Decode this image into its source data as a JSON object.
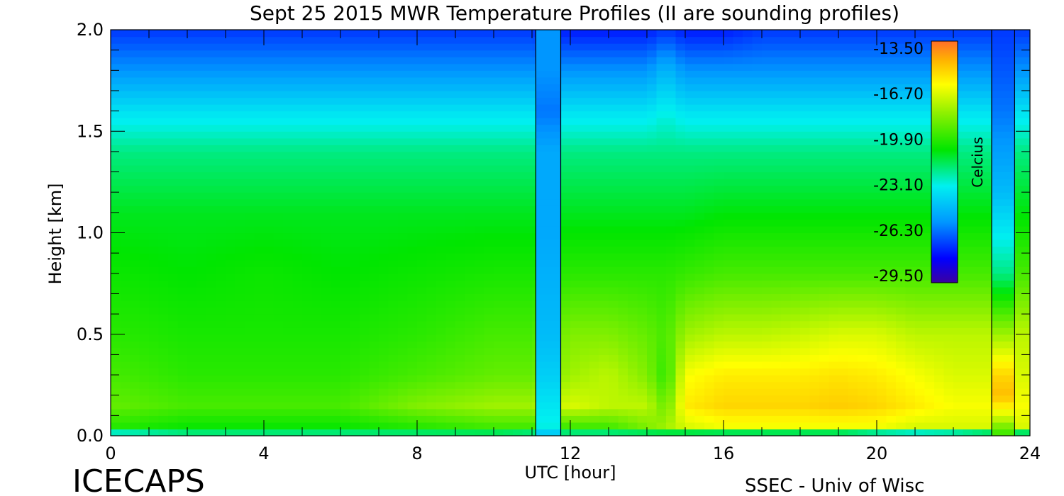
{
  "chart_data": {
    "type": "heatmap",
    "title": "Sept 25 2015 MWR Temperature Profiles (II are sounding profiles)",
    "xlabel": "UTC [hour]",
    "ylabel": "Height [km]",
    "xlim": [
      0,
      24
    ],
    "ylim": [
      0.0,
      2.0
    ],
    "x_ticks": [
      "0",
      "4",
      "8",
      "12",
      "16",
      "20",
      "24"
    ],
    "y_ticks": [
      "0.0",
      "0.5",
      "1.0",
      "1.5",
      "2.0"
    ],
    "colorbar": {
      "label": "Celcius",
      "ticks": [
        "-13.50",
        "-16.70",
        "-19.90",
        "-23.10",
        "-26.30",
        "-29.50"
      ],
      "range": [
        -29.5,
        -13.5
      ]
    },
    "sounding_profiles": [
      {
        "x_start": 11.1,
        "x_end": 11.75
      },
      {
        "x_start": 23.0,
        "x_end": 23.6
      }
    ],
    "temperature_grid": {
      "hours": [
        0,
        2,
        4,
        6,
        8,
        10,
        11,
        12,
        13,
        14,
        14.5,
        15,
        16,
        17,
        18,
        19,
        20,
        21,
        22,
        23
      ],
      "heights_km": [
        0.0,
        0.05,
        0.15,
        0.3,
        0.5,
        0.8,
        1.1,
        1.4,
        1.6,
        1.8,
        2.0
      ],
      "values_c": [
        [
          -24.0,
          -22.5,
          -22.5,
          -22.5,
          -22.5,
          -22.5,
          -23.0,
          -23.0,
          -23.0,
          -23.0,
          -23.0,
          -23.5,
          -24.0,
          -24.0,
          -24.0,
          -24.0,
          -25.0,
          -25.5,
          -25.0,
          -24.0
        ],
        [
          -20.0,
          -20.5,
          -20.5,
          -20.5,
          -20.0,
          -19.5,
          -19.5,
          -19.5,
          -19.5,
          -18.5,
          -18.0,
          -17.0,
          -16.5,
          -16.5,
          -16.5,
          -16.5,
          -16.5,
          -17.0,
          -17.0,
          -17.0
        ],
        [
          -19.0,
          -19.5,
          -19.5,
          -19.5,
          -18.5,
          -18.0,
          -18.0,
          -17.0,
          -17.5,
          -17.5,
          -19.0,
          -16.0,
          -15.5,
          -15.5,
          -15.5,
          -15.3,
          -15.5,
          -16.0,
          -16.5,
          -16.5
        ],
        [
          -19.5,
          -20.0,
          -20.0,
          -20.0,
          -19.5,
          -19.0,
          -19.0,
          -18.0,
          -17.5,
          -18.5,
          -20.0,
          -16.5,
          -16.0,
          -16.0,
          -16.0,
          -15.8,
          -16.0,
          -16.5,
          -17.0,
          -17.0
        ],
        [
          -20.0,
          -20.3,
          -20.3,
          -20.3,
          -20.0,
          -19.5,
          -19.5,
          -18.5,
          -18.5,
          -19.0,
          -19.5,
          -18.0,
          -17.5,
          -17.5,
          -17.3,
          -17.0,
          -17.0,
          -17.5,
          -17.5,
          -17.5
        ],
        [
          -20.5,
          -20.7,
          -20.5,
          -20.7,
          -20.5,
          -20.3,
          -20.3,
          -20.0,
          -20.0,
          -20.0,
          -20.0,
          -19.8,
          -19.5,
          -19.5,
          -19.5,
          -19.5,
          -19.5,
          -19.5,
          -19.5,
          -19.5
        ],
        [
          -21.0,
          -21.0,
          -21.0,
          -21.0,
          -21.0,
          -21.0,
          -21.0,
          -21.0,
          -21.0,
          -21.0,
          -21.0,
          -21.0,
          -20.8,
          -20.8,
          -20.8,
          -20.8,
          -20.8,
          -20.8,
          -20.8,
          -20.8
        ],
        [
          -22.0,
          -22.0,
          -22.0,
          -22.0,
          -22.0,
          -22.0,
          -22.0,
          -22.0,
          -22.0,
          -22.0,
          -22.0,
          -22.0,
          -22.0,
          -22.0,
          -22.0,
          -22.0,
          -22.0,
          -22.0,
          -22.0,
          -22.0
        ],
        [
          -23.5,
          -23.5,
          -23.5,
          -23.5,
          -23.5,
          -23.5,
          -23.5,
          -23.5,
          -23.5,
          -23.5,
          -23.0,
          -23.5,
          -23.5,
          -23.5,
          -23.5,
          -23.5,
          -23.5,
          -23.5,
          -23.5,
          -23.5
        ],
        [
          -25.5,
          -25.5,
          -25.5,
          -25.5,
          -25.5,
          -25.5,
          -25.5,
          -25.5,
          -25.5,
          -25.5,
          -24.5,
          -25.5,
          -25.5,
          -25.5,
          -25.5,
          -25.5,
          -25.5,
          -25.5,
          -25.5,
          -25.5
        ],
        [
          -27.0,
          -27.0,
          -27.0,
          -27.0,
          -27.0,
          -27.0,
          -27.0,
          -27.5,
          -27.5,
          -27.5,
          -27.0,
          -27.5,
          -27.5,
          -27.0,
          -27.0,
          -27.0,
          -27.0,
          -27.0,
          -27.0,
          -27.0
        ]
      ]
    },
    "sounding_1_values_c": {
      "heights_km": [
        0.0,
        0.05,
        0.3,
        0.5,
        1.0,
        1.4,
        1.6,
        1.8,
        2.0
      ],
      "values_c": [
        -24.5,
        -23.0,
        -24.0,
        -24.5,
        -25.0,
        -25.0,
        -26.0,
        -25.5,
        -25.5
      ]
    },
    "sounding_2_values_c": {
      "heights_km": [
        0.0,
        0.1,
        0.2,
        0.3,
        0.5,
        0.8,
        1.2,
        1.6,
        2.0
      ],
      "values_c": [
        -20.0,
        -17.0,
        -15.0,
        -15.5,
        -18.0,
        -22.0,
        -24.5,
        -26.0,
        -27.0
      ]
    }
  },
  "footer": {
    "left_logo": "ICECAPS",
    "right_credit": "SSEC - Univ of Wisc"
  }
}
